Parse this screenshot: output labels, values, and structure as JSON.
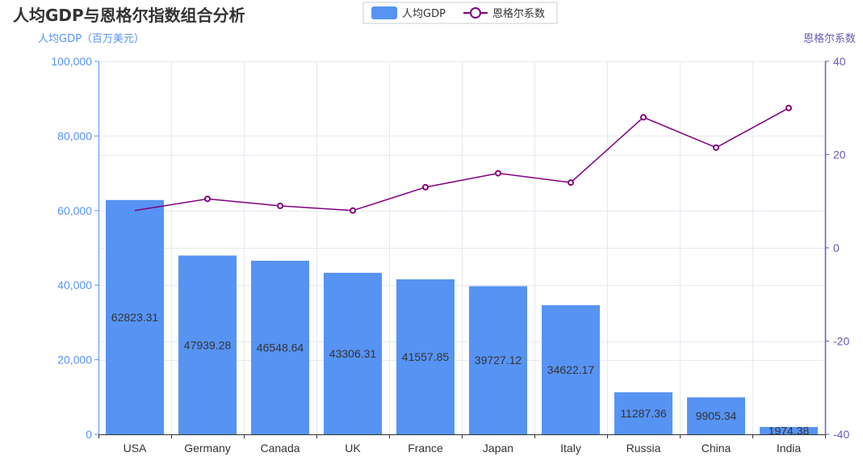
{
  "chart_data": {
    "type": "bar",
    "title": "人均GDP与恩格尔指数组合分析",
    "categories": [
      "USA",
      "Germany",
      "Canada",
      "UK",
      "France",
      "Japan",
      "Italy",
      "Russia",
      "China",
      "India"
    ],
    "left_axis": {
      "name": "人均GDP（百万美元）",
      "ylim": [
        0,
        100000
      ],
      "ticks": [
        "0",
        "20,000",
        "40,000",
        "60,000",
        "80,000",
        "100,000"
      ],
      "color": "#5793f3"
    },
    "right_axis": {
      "name": "恩格尔系数",
      "ylim": [
        -40,
        40
      ],
      "ticks": [
        "-40",
        "-20",
        "0",
        "20",
        "40"
      ],
      "color": "#675bba"
    },
    "series": [
      {
        "name": "人均GDP",
        "type": "bar",
        "axis": "left",
        "color": "#5793f3",
        "values": [
          62823.31,
          47939.28,
          46548.64,
          43306.31,
          41557.85,
          39727.12,
          34622.17,
          11287.36,
          9905.34,
          1974.38
        ],
        "labels": [
          "62823.31",
          "47939.28",
          "46548.64",
          "43306.31",
          "41557.85",
          "39727.12",
          "34622.17",
          "11287.36",
          "9905.34",
          "1974.38"
        ]
      },
      {
        "name": "恩格尔系数",
        "type": "line",
        "axis": "right",
        "color": "#800080",
        "values": [
          8,
          10.5,
          9,
          8,
          13,
          16,
          14,
          28,
          21.5,
          30
        ]
      }
    ],
    "grid": true,
    "legend_position": "top-center"
  }
}
